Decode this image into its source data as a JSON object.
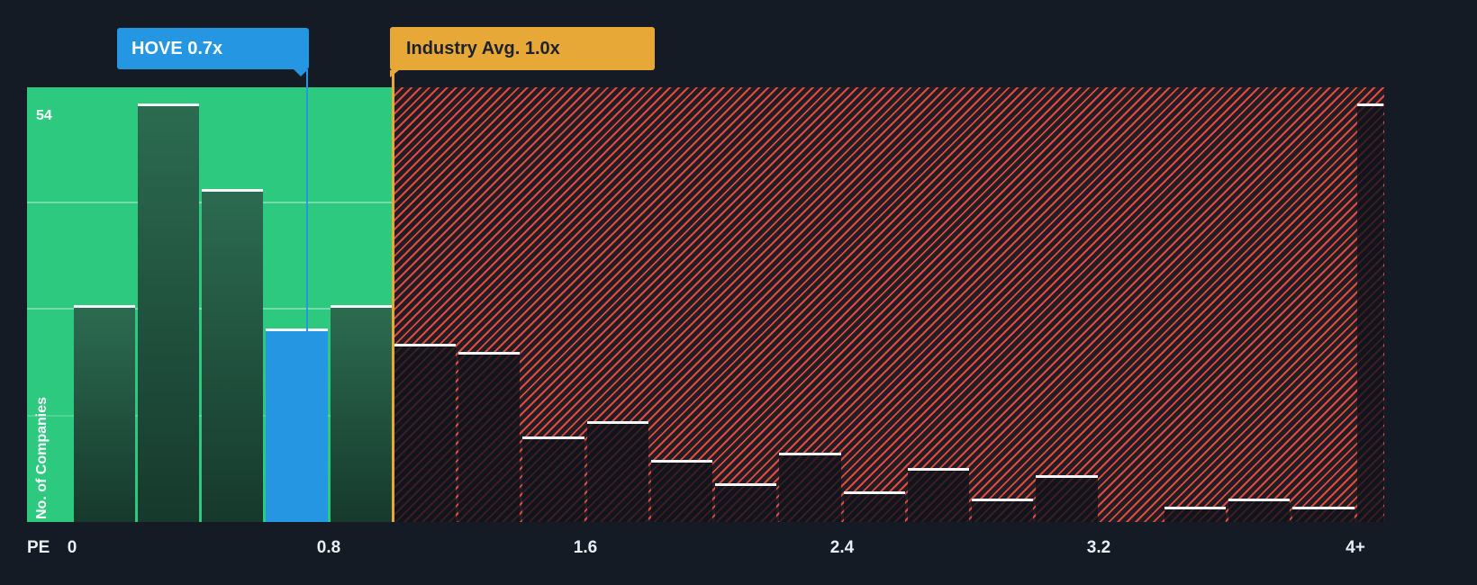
{
  "page": {
    "background": "#151B24"
  },
  "colors": {
    "green_zone": "#2DC97E",
    "green_bar_top": "#2C6B51",
    "green_bar_bottom": "#16392C",
    "company_blue": "#2596E2",
    "industry_orange": "#E8A838",
    "hatch_red": "#E24B3D",
    "cap_white": "#F4F6F7",
    "tooltip_text_dark": "#1C232E"
  },
  "labels": {
    "y_axis": "No. of Companies",
    "y_max": "54",
    "x_prefix": "PE"
  },
  "tooltips": {
    "company": "HOVE 0.7x",
    "industry": "Industry Avg. 1.0x"
  },
  "chart_data": {
    "type": "bar",
    "title": "",
    "xlabel": "PE",
    "ylabel": "No. of Companies",
    "ylim": [
      0,
      56
    ],
    "y_max_label": 54,
    "x_ticks": [
      {
        "value": 0,
        "label": "0"
      },
      {
        "value": 0.8,
        "label": "0.8"
      },
      {
        "value": 1.6,
        "label": "1.6"
      },
      {
        "value": 2.4,
        "label": "2.4"
      },
      {
        "value": 3.2,
        "label": "3.2"
      },
      {
        "value": 4.0,
        "label": "4+"
      }
    ],
    "company_marker": {
      "name": "HOVE",
      "value": 0.7,
      "label": "HOVE 0.7x"
    },
    "industry_avg": {
      "value": 1.0,
      "label": "Industry Avg. 1.0x"
    },
    "bars": [
      {
        "x0": 0.0,
        "x1": 0.2,
        "count": 28,
        "zone": "below"
      },
      {
        "x0": 0.2,
        "x1": 0.4,
        "count": 54,
        "zone": "below"
      },
      {
        "x0": 0.4,
        "x1": 0.6,
        "count": 43,
        "zone": "below"
      },
      {
        "x0": 0.6,
        "x1": 0.8,
        "count": 25,
        "zone": "company"
      },
      {
        "x0": 0.8,
        "x1": 1.0,
        "count": 28,
        "zone": "below"
      },
      {
        "x0": 1.0,
        "x1": 1.2,
        "count": 23,
        "zone": "above"
      },
      {
        "x0": 1.2,
        "x1": 1.4,
        "count": 22,
        "zone": "above"
      },
      {
        "x0": 1.4,
        "x1": 1.6,
        "count": 11,
        "zone": "above"
      },
      {
        "x0": 1.6,
        "x1": 1.8,
        "count": 13,
        "zone": "above"
      },
      {
        "x0": 1.8,
        "x1": 2.0,
        "count": 8,
        "zone": "above"
      },
      {
        "x0": 2.0,
        "x1": 2.2,
        "count": 5,
        "zone": "above"
      },
      {
        "x0": 2.2,
        "x1": 2.4,
        "count": 9,
        "zone": "above"
      },
      {
        "x0": 2.4,
        "x1": 2.6,
        "count": 4,
        "zone": "above"
      },
      {
        "x0": 2.6,
        "x1": 2.8,
        "count": 7,
        "zone": "above"
      },
      {
        "x0": 2.8,
        "x1": 3.0,
        "count": 3,
        "zone": "above"
      },
      {
        "x0": 3.0,
        "x1": 3.2,
        "count": 6,
        "zone": "above"
      },
      {
        "x0": 3.2,
        "x1": 3.4,
        "count": 0,
        "zone": "above"
      },
      {
        "x0": 3.4,
        "x1": 3.6,
        "count": 2,
        "zone": "above"
      },
      {
        "x0": 3.6,
        "x1": 3.8,
        "count": 3,
        "zone": "above"
      },
      {
        "x0": 3.8,
        "x1": 4.0,
        "count": 2,
        "zone": "above"
      },
      {
        "x0": 4.0,
        "x1": 4.09,
        "count": 54,
        "zone": "above",
        "label": "4+"
      }
    ]
  }
}
